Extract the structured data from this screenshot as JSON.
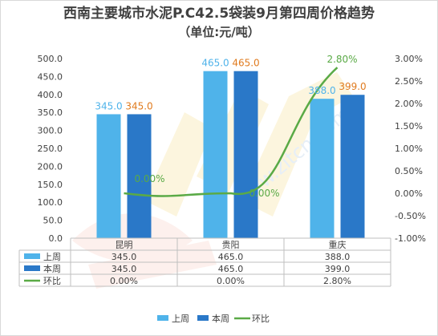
{
  "title": "西南主要城市水泥P.C42.5袋装9月第四周价格趋势",
  "subtitle": "（单位:元/吨）",
  "chart_data": {
    "type": "bar",
    "categories": [
      "昆明",
      "贵阳",
      "重庆"
    ],
    "ylim": [
      0,
      500
    ],
    "yticks": [
      "0.0",
      "50.0",
      "100.0",
      "150.0",
      "200.0",
      "250.0",
      "300.0",
      "350.0",
      "400.0",
      "450.0",
      "500.0"
    ],
    "y2lim": [
      -1.0,
      3.0
    ],
    "y2ticks": [
      "-1.00%",
      "-0.50%",
      "0.00%",
      "0.50%",
      "1.00%",
      "1.50%",
      "2.00%",
      "2.50%",
      "3.00%"
    ],
    "series": [
      {
        "name": "上周",
        "type": "bar",
        "color": "#4fb3ea",
        "values": [
          345.0,
          465.0,
          388.0
        ],
        "labels": [
          "345.0",
          "465.0",
          "388.0"
        ],
        "label_color": "#4fb3ea"
      },
      {
        "name": "本周",
        "type": "bar",
        "color": "#2a78c8",
        "values": [
          345.0,
          465.0,
          399.0
        ],
        "labels": [
          "345.0",
          "465.0",
          "399.0"
        ],
        "label_color": "#e07b1f"
      },
      {
        "name": "环比",
        "type": "line",
        "axis": "right",
        "color": "#5aaa46",
        "values": [
          0.0,
          0.0,
          2.8
        ],
        "labels": [
          "0.00%",
          "0.00%",
          "2.80%"
        ],
        "label_color": "#5aaa46"
      }
    ],
    "table": [
      {
        "name": "上周",
        "cells": [
          "345.0",
          "465.0",
          "388.0"
        ]
      },
      {
        "name": "本周",
        "cells": [
          "345.0",
          "465.0",
          "399.0"
        ]
      },
      {
        "name": "环比",
        "cells": [
          "0.00%",
          "0.00%",
          "2.80%"
        ]
      }
    ],
    "legend": [
      "上周",
      "本周",
      "环比"
    ],
    "legend_position": "bottom",
    "grid": false
  },
  "watermark": "卓创资讯 www.zitcn.com"
}
